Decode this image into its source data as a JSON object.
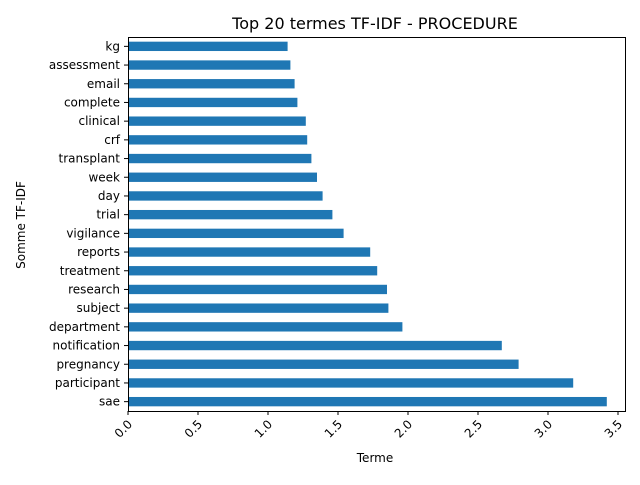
{
  "chart_data": {
    "type": "bar",
    "orientation": "horizontal",
    "title": "Top 20 termes TF-IDF - PROCEDURE",
    "xlabel": "Terme",
    "ylabel": "Somme TF-IDF",
    "xlim": [
      0.0,
      3.55
    ],
    "xticks": [
      "0.0",
      "0.5",
      "1.0",
      "1.5",
      "2.0",
      "2.5",
      "3.0",
      "3.5"
    ],
    "grid": false,
    "bar_color": "#1f77b4",
    "categories": [
      "kg",
      "assessment",
      "email",
      "complete",
      "clinical",
      "crf",
      "transplant",
      "week",
      "day",
      "trial",
      "vigilance",
      "reports",
      "treatment",
      "research",
      "subject",
      "department",
      "notification",
      "pregnancy",
      "participant",
      "sae"
    ],
    "values": [
      1.14,
      1.16,
      1.19,
      1.21,
      1.27,
      1.28,
      1.31,
      1.35,
      1.39,
      1.46,
      1.54,
      1.73,
      1.78,
      1.85,
      1.86,
      1.96,
      2.67,
      2.79,
      3.18,
      3.42
    ]
  }
}
